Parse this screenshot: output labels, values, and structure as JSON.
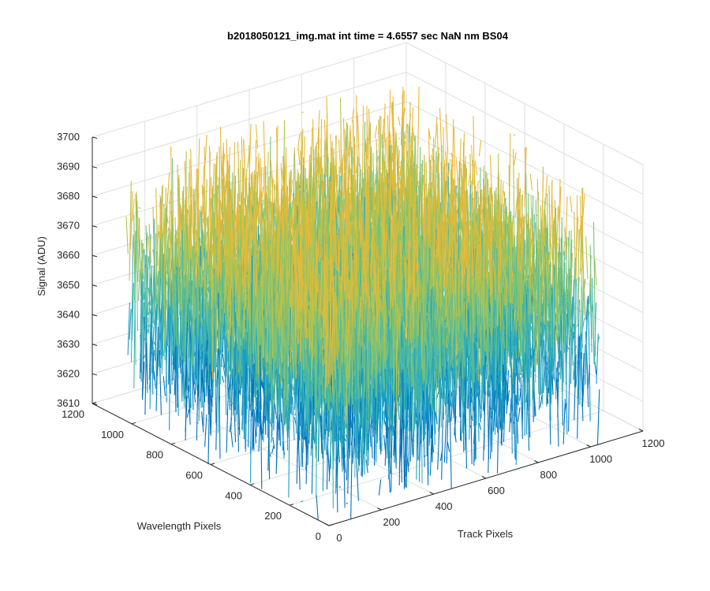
{
  "chart_data": {
    "type": "surface",
    "title": "b2018050121_img.mat int time = 4.6557 sec  NaN nm BS04",
    "xlabel": "Track Pixels",
    "ylabel": "Wavelength Pixels",
    "zlabel": "Signal (ADU)",
    "xlim": [
      0,
      1200
    ],
    "ylim": [
      0,
      1200
    ],
    "zlim": [
      3610,
      3700
    ],
    "x_ticks": [
      "0",
      "200",
      "400",
      "600",
      "800",
      "1000",
      "1200"
    ],
    "y_ticks": [
      "0",
      "200",
      "400",
      "600",
      "800",
      "1000",
      "1200"
    ],
    "z_ticks": [
      "3610",
      "3620",
      "3630",
      "3640",
      "3650",
      "3660",
      "3670",
      "3680",
      "3690",
      "3700"
    ],
    "data_extent": {
      "track": [
        0,
        1024
      ],
      "wavelength": [
        0,
        1024
      ]
    },
    "signal_mean": 3655,
    "signal_spread": 18,
    "grid": true,
    "colormap": [
      "#0072BD",
      "#1A9CC8",
      "#3CB5B0",
      "#78C27A",
      "#B7C249",
      "#E8B93A"
    ]
  }
}
